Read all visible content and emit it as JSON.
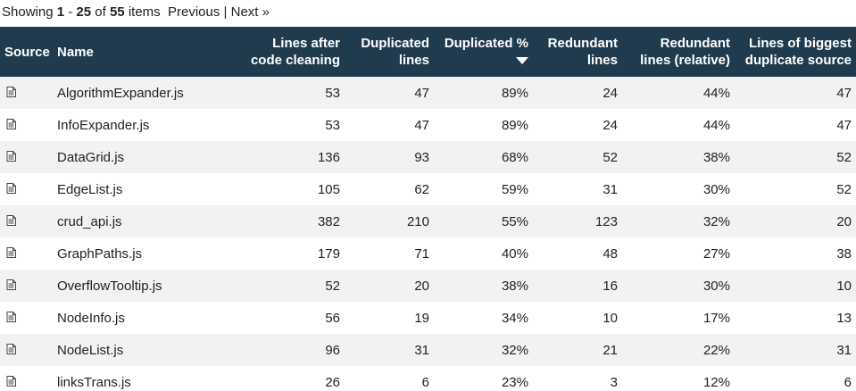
{
  "pager": {
    "showing": "Showing",
    "from": "1",
    "dash": "-",
    "to": "25",
    "of": "of",
    "total": "55",
    "items": "items",
    "previous": "Previous",
    "separator": "|",
    "next": "Next »"
  },
  "table": {
    "headers": {
      "source": "Source",
      "name": "Name",
      "lines_after": "Lines after code cleaning",
      "dup_lines": "Duplicated lines",
      "dup_pct": "Duplicated %",
      "redundant": "Redundant lines",
      "redundant_rel": "Redundant lines (relative)",
      "biggest": "Lines of biggest duplicate source"
    },
    "sort": {
      "column": "dup_pct",
      "direction": "descending"
    },
    "source_icon": "document-icon",
    "rows": [
      {
        "name": "AlgorithmExpander.js",
        "lines": "53",
        "dup": "47",
        "pct": "89%",
        "red": "24",
        "rel": "44%",
        "big": "47"
      },
      {
        "name": "InfoExpander.js",
        "lines": "53",
        "dup": "47",
        "pct": "89%",
        "red": "24",
        "rel": "44%",
        "big": "47"
      },
      {
        "name": "DataGrid.js",
        "lines": "136",
        "dup": "93",
        "pct": "68%",
        "red": "52",
        "rel": "38%",
        "big": "52"
      },
      {
        "name": "EdgeList.js",
        "lines": "105",
        "dup": "62",
        "pct": "59%",
        "red": "31",
        "rel": "30%",
        "big": "52"
      },
      {
        "name": "crud_api.js",
        "lines": "382",
        "dup": "210",
        "pct": "55%",
        "red": "123",
        "rel": "32%",
        "big": "20"
      },
      {
        "name": "GraphPaths.js",
        "lines": "179",
        "dup": "71",
        "pct": "40%",
        "red": "48",
        "rel": "27%",
        "big": "38"
      },
      {
        "name": "OverflowTooltip.js",
        "lines": "52",
        "dup": "20",
        "pct": "38%",
        "red": "16",
        "rel": "30%",
        "big": "10"
      },
      {
        "name": "NodeInfo.js",
        "lines": "56",
        "dup": "19",
        "pct": "34%",
        "red": "10",
        "rel": "17%",
        "big": "13"
      },
      {
        "name": "NodeList.js",
        "lines": "96",
        "dup": "31",
        "pct": "32%",
        "red": "21",
        "rel": "22%",
        "big": "31"
      },
      {
        "name": "linksTrans.js",
        "lines": "26",
        "dup": "6",
        "pct": "23%",
        "red": "3",
        "rel": "12%",
        "big": "6"
      }
    ]
  },
  "colors": {
    "header_bg": "#1f3b4d",
    "header_text": "#ffffff",
    "row_alt": "#f2f2f2"
  }
}
